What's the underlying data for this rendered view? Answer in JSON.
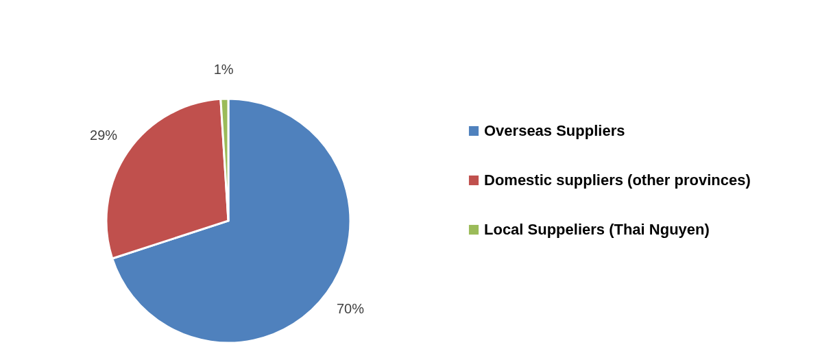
{
  "chart_data": {
    "type": "pie",
    "categories": [
      "Overseas Suppliers",
      "Domestic suppliers (other provinces)",
      "Local Suppeliers (Thai Nguyen)"
    ],
    "values": [
      70,
      29,
      1
    ],
    "colors": [
      "#4f81bd",
      "#c0504d",
      "#9bbb59"
    ],
    "value_labels": [
      "70%",
      "29%",
      "1%"
    ],
    "legend": "right"
  }
}
